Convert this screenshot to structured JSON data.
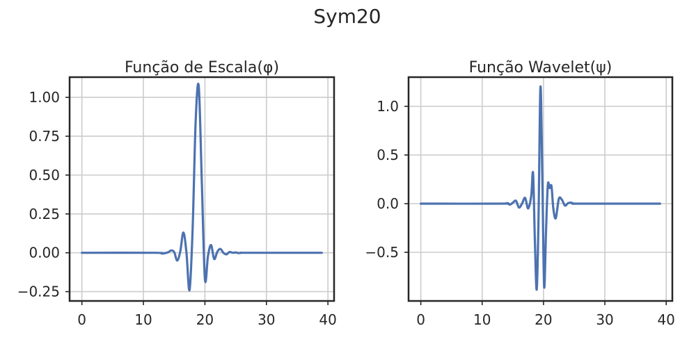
{
  "figure": {
    "suptitle": "Sym20",
    "colors": {
      "line": "#4c72b0",
      "grid": "#cccccc",
      "axes": "#262626",
      "background": "#ffffff"
    }
  },
  "chart_data": [
    {
      "type": "line",
      "title": "Função de Escala(φ)",
      "xlabel": "",
      "ylabel": "",
      "xlim": [
        -2,
        41
      ],
      "ylim": [
        -0.31,
        1.13
      ],
      "grid": true,
      "xticks": [
        0,
        10,
        20,
        30,
        40
      ],
      "xtick_labels": [
        "0",
        "10",
        "20",
        "30",
        "40"
      ],
      "yticks": [
        -0.25,
        0,
        0.25,
        0.5,
        0.75,
        1.0
      ],
      "ytick_labels": [
        "−0.25",
        "0.00",
        "0.25",
        "0.50",
        "0.75",
        "1.00"
      ],
      "series": [
        {
          "x": [
            0,
            12,
            13,
            14,
            14.5,
            15,
            15.5,
            16,
            16.5,
            17,
            17.5,
            18,
            18.5,
            19,
            19.5,
            20,
            20.5,
            21,
            21.5,
            22,
            22.5,
            23,
            23.5,
            24,
            24.5,
            25,
            25.5,
            26,
            27,
            39
          ],
          "y": [
            0,
            0,
            -0.005,
            0.003,
            0.015,
            0.005,
            -0.05,
            0.01,
            0.13,
            0.0,
            -0.24,
            0.15,
            0.85,
            1.07,
            0.45,
            -0.17,
            -0.02,
            0.05,
            -0.04,
            0.005,
            0.025,
            0.0,
            -0.01,
            0.005,
            0.0,
            0.002,
            -0.002,
            0.0,
            0,
            0
          ]
        }
      ]
    },
    {
      "type": "line",
      "title": "Função Wavelet(ψ)",
      "xlabel": "",
      "ylabel": "",
      "xlim": [
        -2,
        41
      ],
      "ylim": [
        -1.0,
        1.3
      ],
      "grid": true,
      "xticks": [
        0,
        10,
        20,
        30,
        40
      ],
      "xtick_labels": [
        "0",
        "10",
        "20",
        "30",
        "40"
      ],
      "yticks": [
        -0.5,
        0,
        0.5,
        1.0
      ],
      "ytick_labels": [
        "−0.5",
        "0.0",
        "0.5",
        "1.0"
      ],
      "series": [
        {
          "x": [
            0,
            13,
            14,
            14.5,
            15,
            15.5,
            16,
            16.5,
            17,
            17.5,
            18,
            18.3,
            18.6,
            18.9,
            19.2,
            19.5,
            19.8,
            20.1,
            20.4,
            20.7,
            21,
            21.3,
            21.6,
            22,
            22.5,
            23,
            23.5,
            24,
            24.5,
            25,
            26,
            39
          ],
          "y": [
            0,
            0,
            0.005,
            -0.01,
            0.01,
            0.03,
            -0.04,
            0.0,
            0.06,
            -0.05,
            0.08,
            0.31,
            -0.4,
            -0.88,
            -0.1,
            1.2,
            0.3,
            -0.85,
            -0.3,
            0.19,
            0.16,
            0.18,
            -0.05,
            -0.15,
            0.05,
            0.04,
            -0.02,
            0.005,
            0.01,
            0.0,
            0,
            0
          ]
        }
      ]
    }
  ]
}
